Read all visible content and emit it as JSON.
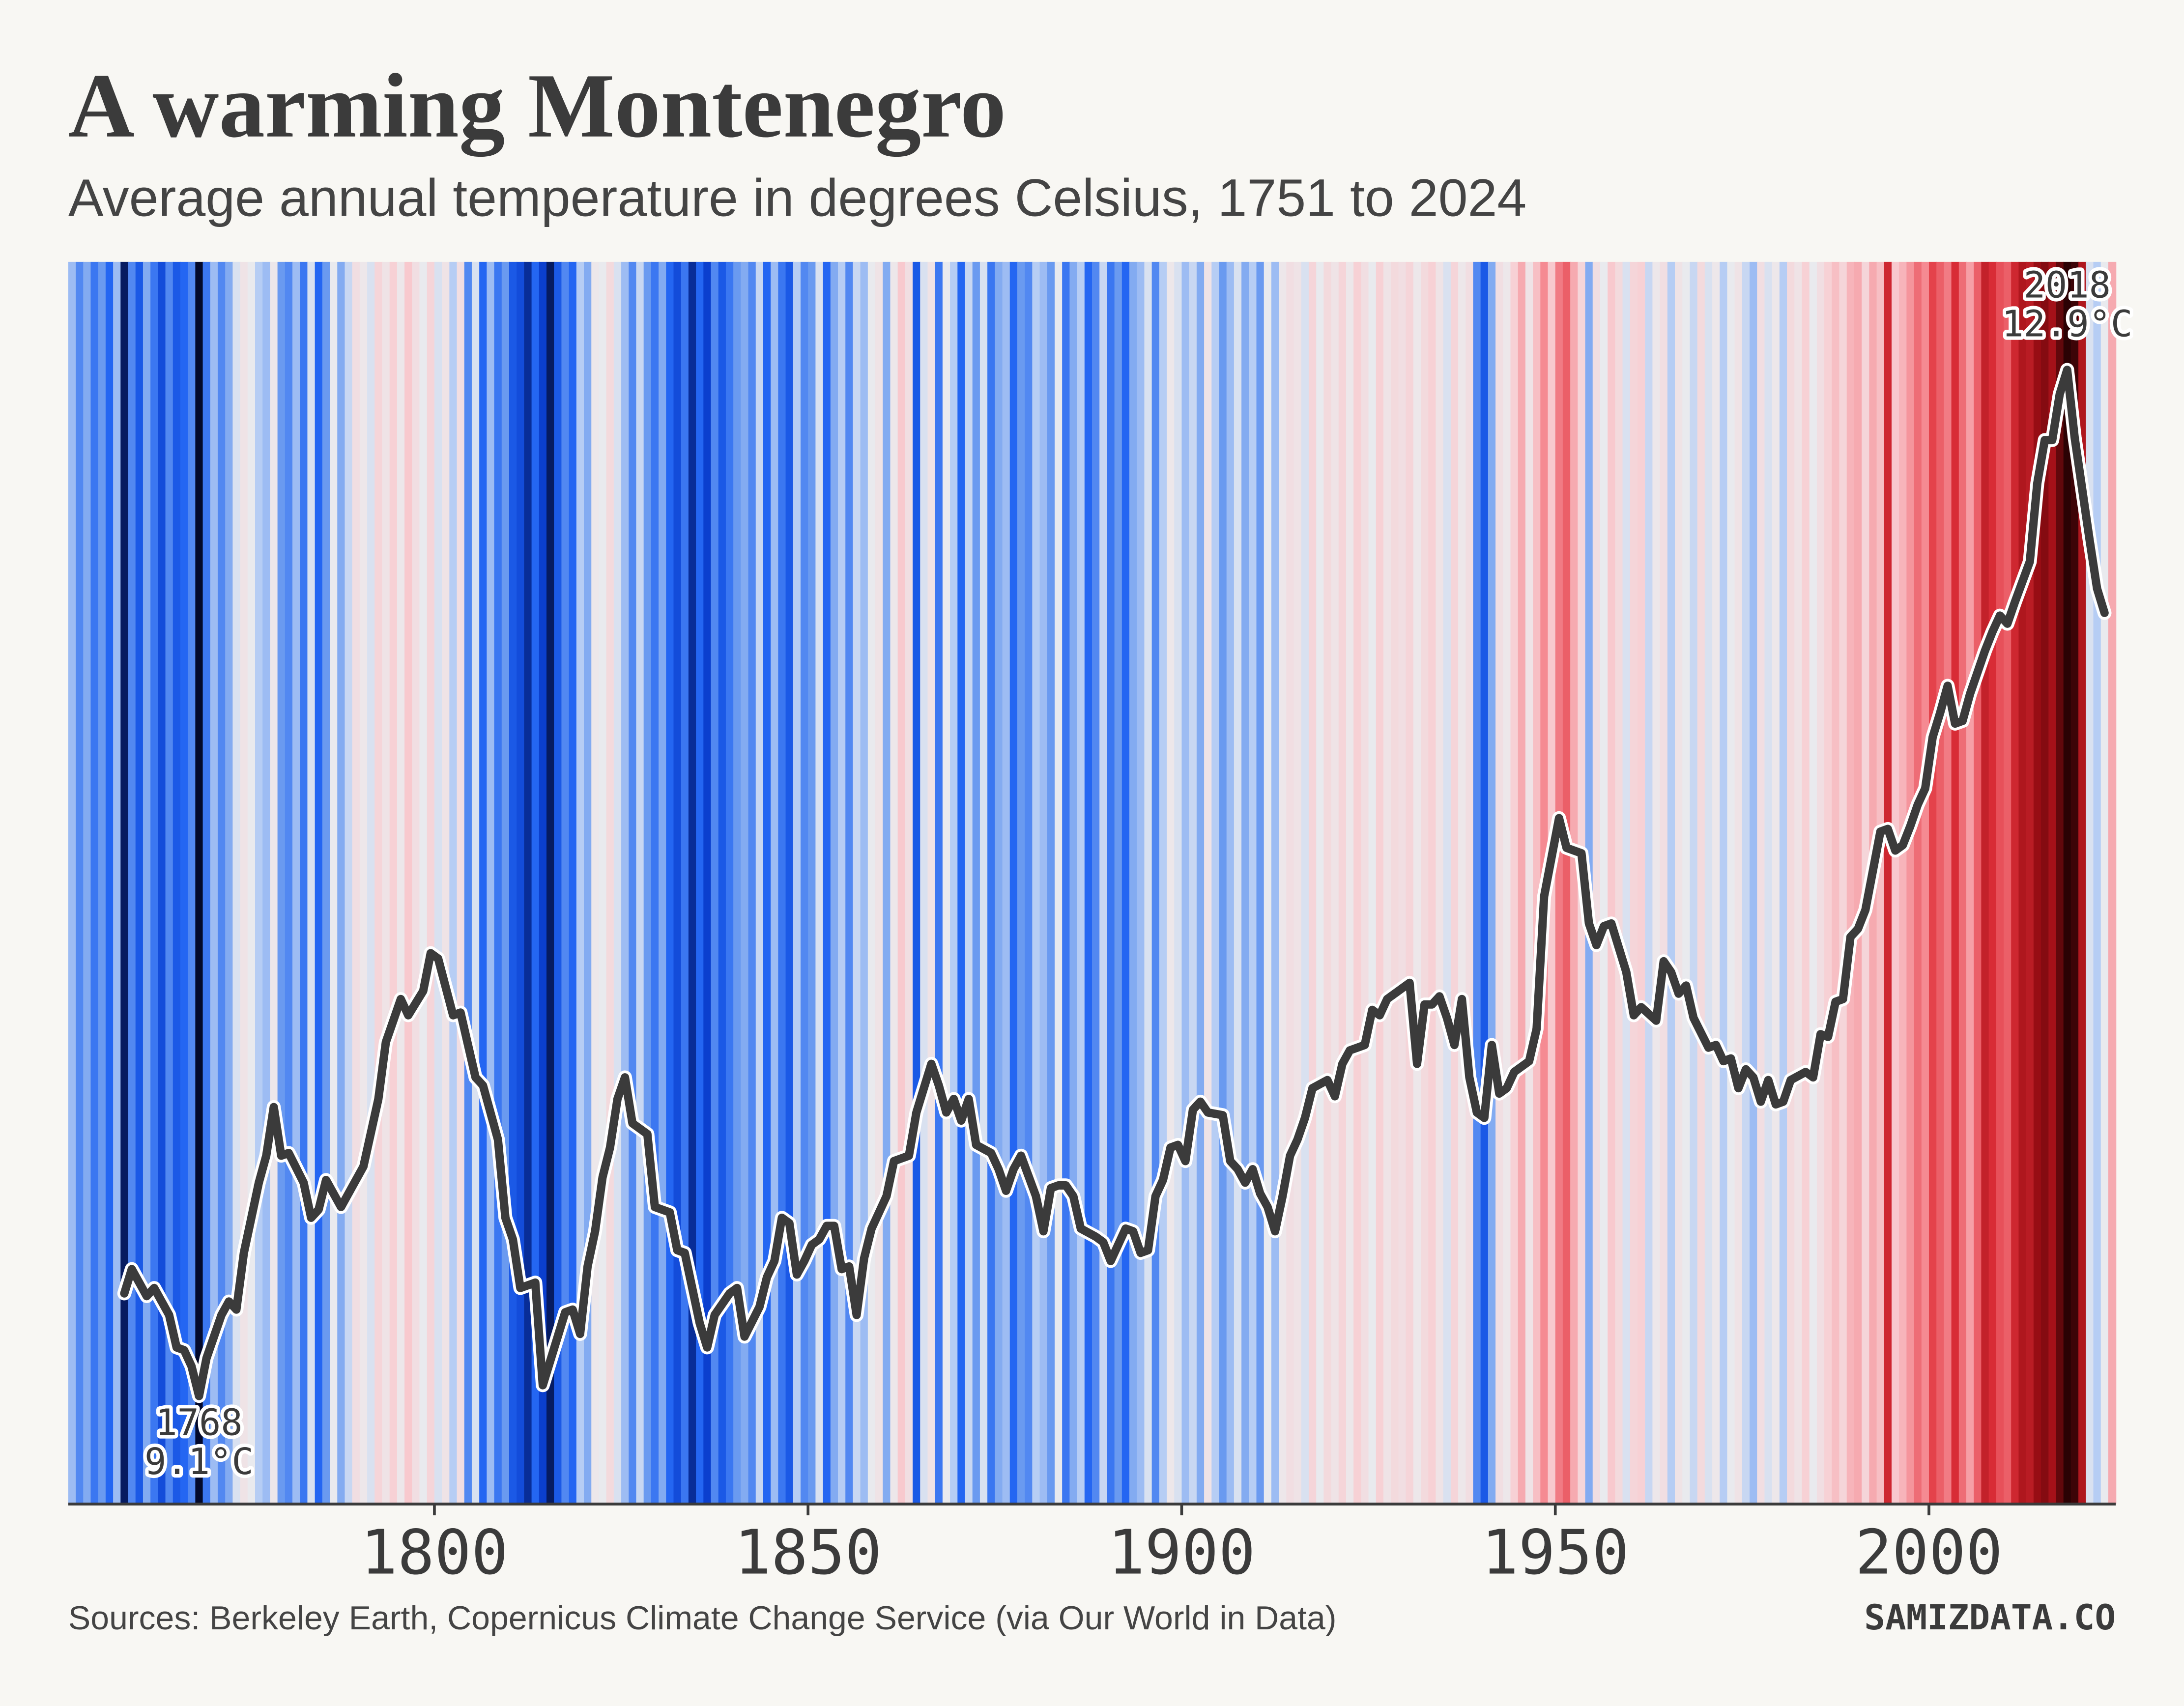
{
  "chart_data": {
    "type": "stripes",
    "title": "A warming Montenegro",
    "subtitle": "Average annual temperature in degrees Celsius, 1751 to 2024",
    "source": "Sources: Berkeley Earth, Copernicus Climate Change Service (via Our World in Data)",
    "brand": "SAMIZDATA.CO",
    "xlim": [
      1751,
      2025
    ],
    "xticks": [
      1800,
      1850,
      1900,
      1950,
      2000
    ],
    "ylim": [
      8.7,
      13.3
    ],
    "colormap": [
      "#03092b",
      "#0b3fcf",
      "#2466f2",
      "#6b9bf0",
      "#b8cef4",
      "#ebebee",
      "#f8cfd3",
      "#f58c94",
      "#e0303a",
      "#9e0e15",
      "#2b0204"
    ],
    "series": [
      {
        "x": [
          1751,
          1752,
          1753,
          1754,
          1755,
          1756,
          1757,
          1758,
          1759,
          1760,
          1761,
          1762,
          1763,
          1764,
          1765,
          1766,
          1767,
          1768,
          1769,
          1770,
          1771,
          1772,
          1773,
          1774,
          1775,
          1776,
          1777,
          1778,
          1779,
          1780,
          1781,
          1782,
          1783,
          1784,
          1785,
          1786,
          1787,
          1788,
          1789,
          1790,
          1791,
          1792,
          1793,
          1794,
          1795,
          1796,
          1797,
          1798,
          1799,
          1800,
          1801,
          1802,
          1803,
          1804,
          1805,
          1806,
          1807,
          1808,
          1809,
          1810,
          1811,
          1812,
          1813,
          1814,
          1815,
          1816,
          1817,
          1818,
          1819,
          1820,
          1821,
          1822,
          1823,
          1824,
          1825,
          1826,
          1827,
          1828,
          1829,
          1830,
          1831,
          1832,
          1833,
          1834,
          1835,
          1836,
          1837,
          1838,
          1839,
          1840,
          1841,
          1842,
          1843,
          1844,
          1845,
          1846,
          1847,
          1848,
          1849,
          1850,
          1851,
          1852,
          1853,
          1854,
          1855,
          1856,
          1857,
          1858,
          1859,
          1860,
          1861,
          1862,
          1863,
          1864,
          1865,
          1866,
          1867,
          1868,
          1869,
          1870,
          1871,
          1872,
          1873,
          1874,
          1875,
          1876,
          1877,
          1878,
          1879,
          1880,
          1881,
          1882,
          1883,
          1884,
          1885,
          1886,
          1887,
          1888,
          1889,
          1890,
          1891,
          1892,
          1893,
          1894,
          1895,
          1896,
          1897,
          1898,
          1899,
          1900,
          1901,
          1902,
          1903,
          1904,
          1905,
          1906,
          1907,
          1908,
          1909,
          1910,
          1911,
          1912,
          1913,
          1914,
          1915,
          1916,
          1917,
          1918,
          1919,
          1920,
          1921,
          1922,
          1923,
          1924,
          1925,
          1926,
          1927,
          1928,
          1929,
          1930,
          1931,
          1932,
          1933,
          1934,
          1935,
          1936,
          1937,
          1938,
          1939,
          1940,
          1941,
          1942,
          1943,
          1944,
          1945,
          1946,
          1947,
          1948,
          1949,
          1950,
          1951,
          1952,
          1953,
          1954,
          1955,
          1956,
          1957,
          1958,
          1959,
          1960,
          1961,
          1962,
          1963,
          1964,
          1965,
          1966,
          1967,
          1968,
          1969,
          1970,
          1971,
          1972,
          1973,
          1974,
          1975,
          1976,
          1977,
          1978,
          1979,
          1980,
          1981,
          1982,
          1983,
          1984,
          1985,
          1986,
          1987,
          1988,
          1989,
          1990,
          1991,
          1992,
          1993,
          1994,
          1995,
          1996,
          1997,
          1998,
          1999,
          2000,
          2001,
          2002,
          2003,
          2004,
          2005,
          2006,
          2007,
          2008,
          2009,
          2010,
          2011,
          2012,
          2013,
          2014,
          2015,
          2016,
          2017,
          2018,
          2019,
          2020,
          2021,
          2022,
          2023,
          2024
        ],
        "values": [
          9.9,
          9.6,
          9.8,
          9.5,
          9.7,
          9.4,
          9.9,
          8.9,
          9.6,
          9.3,
          9.8,
          9.5,
          9.2,
          9.6,
          9.3,
          9.4,
          9.6,
          8.8,
          9.5,
          9.9,
          9.6,
          9.8,
          10.2,
          10.5,
          10.3,
          10.0,
          9.9,
          10.4,
          9.7,
          9.6,
          9.9,
          9.5,
          10.2,
          9.4,
          9.7,
          10.3,
          9.8,
          10.1,
          10.6,
          10.4,
          10.2,
          10.8,
          10.5,
          10.9,
          10.4,
          11.0,
          10.6,
          10.3,
          10.8,
          10.2,
          10.5,
          10.0,
          10.6,
          9.6,
          10.2,
          9.4,
          9.9,
          9.5,
          9.7,
          9.3,
          9.2,
          9.0,
          9.4,
          9.1,
          8.9,
          9.3,
          9.6,
          9.4,
          10.0,
          9.8,
          10.4,
          10.3,
          10.7,
          10.2,
          9.9,
          9.6,
          10.1,
          9.7,
          9.5,
          9.8,
          9.4,
          9.2,
          9.5,
          9.0,
          9.4,
          9.1,
          9.6,
          9.3,
          9.5,
          9.7,
          9.8,
          9.6,
          10.1,
          9.4,
          9.9,
          9.5,
          9.3,
          10.0,
          9.6,
          9.7,
          10.2,
          9.4,
          9.8,
          10.0,
          9.6,
          10.1,
          9.9,
          10.3,
          10.5,
          9.8,
          10.4,
          11.0,
          10.6,
          9.3,
          10.2,
          10.5,
          9.5,
          10.3,
          10.0,
          9.4,
          10.1,
          9.7,
          10.2,
          9.5,
          9.8,
          9.9,
          9.4,
          9.7,
          9.6,
          10.0,
          9.9,
          9.7,
          10.3,
          9.5,
          9.8,
          10.0,
          9.4,
          9.6,
          10.1,
          9.5,
          9.7,
          9.4,
          9.8,
          9.9,
          10.2,
          9.6,
          10.0,
          10.4,
          10.2,
          9.9,
          10.1,
          9.8,
          10.5,
          10.0,
          9.7,
          9.9,
          10.2,
          9.8,
          10.0,
          9.7,
          10.3,
          9.9,
          10.4,
          10.6,
          10.5,
          10.2,
          10.8,
          10.3,
          10.7,
          10.5,
          10.8,
          10.4,
          10.9,
          10.6,
          10.3,
          10.9,
          10.5,
          10.7,
          10.6,
          10.8,
          10.4,
          10.7,
          10.9,
          10.5,
          10.2,
          10.8,
          10.4,
          10.6,
          9.6,
          9.3,
          9.8,
          10.6,
          10.4,
          10.9,
          11.3,
          10.5,
          11.1,
          11.6,
          11.0,
          11.7,
          11.9,
          11.3,
          10.8,
          9.8,
          10.6,
          10.3,
          11.0,
          10.7,
          10.2,
          10.8,
          10.9,
          10.1,
          10.4,
          10.6,
          10.0,
          10.5,
          10.3,
          10.1,
          10.7,
          10.2,
          10.4,
          10.0,
          10.3,
          10.5,
          10.1,
          9.9,
          10.6,
          10.2,
          10.4,
          10.0,
          10.7,
          10.5,
          10.9,
          10.3,
          10.6,
          10.9,
          11.1,
          10.8,
          11.2,
          11.3,
          10.8,
          11.3,
          11.1,
          12.4,
          11.0,
          11.2,
          11.5,
          11.8,
          11.6,
          12.1,
          11.9,
          11.7,
          12.3,
          11.8,
          11.4,
          11.9,
          12.5,
          12.3,
          12.0,
          11.9,
          12.4,
          12.7,
          12.6,
          12.9,
          13.0,
          12.8,
          13.2,
          13.5,
          13.4,
          12.7,
          10.2,
          10.0,
          10.3,
          11.3
        ]
      },
      {
        "color": "#3b3b3b",
        "x": [
          1758,
          1759,
          1761,
          1762,
          1764,
          1765,
          1766,
          1767,
          1768,
          1769,
          1771,
          1772,
          1773,
          1774,
          1776,
          1777,
          1778,
          1779,
          1780,
          1782,
          1783,
          1784,
          1785,
          1786,
          1787,
          1788,
          1790,
          1792,
          1793,
          1795,
          1796,
          1798,
          1799,
          1800,
          1802,
          1803,
          1805,
          1806,
          1807,
          1808,
          1809,
          1810,
          1811,
          1813,
          1814,
          1816,
          1817,
          1818,
          1819,
          1820,
          1821,
          1822,
          1823,
          1824,
          1825,
          1826,
          1828,
          1829,
          1831,
          1832,
          1833,
          1835,
          1836,
          1837,
          1839,
          1840,
          1841,
          1843,
          1844,
          1845,
          1846,
          1847,
          1848,
          1849,
          1850,
          1851,
          1852,
          1853,
          1854,
          1855,
          1856,
          1857,
          1858,
          1860,
          1861,
          1863,
          1864,
          1866,
          1867,
          1868,
          1869,
          1870,
          1871,
          1872,
          1874,
          1875,
          1876,
          1877,
          1878,
          1880,
          1881,
          1882,
          1883,
          1884,
          1885,
          1886,
          1888,
          1889,
          1890,
          1892,
          1893,
          1894,
          1895,
          1896,
          1897,
          1898,
          1899,
          1900,
          1901,
          1902,
          1903,
          1905,
          1906,
          1907,
          1908,
          1909,
          1910,
          1911,
          1912,
          1913,
          1914,
          1915,
          1916,
          1917,
          1919,
          1920,
          1921,
          1922,
          1924,
          1925,
          1926,
          1927,
          1929,
          1930,
          1931,
          1932,
          1933,
          1934,
          1935,
          1936,
          1937,
          1938,
          1939,
          1940,
          1941,
          1942,
          1943,
          1944,
          1946,
          1947,
          1948,
          1950,
          1951,
          1953,
          1954,
          1955,
          1956,
          1957,
          1958,
          1959,
          1960,
          1961,
          1963,
          1964,
          1965,
          1966,
          1967,
          1968,
          1970,
          1971,
          1972,
          1973,
          1974,
          1975,
          1976,
          1977,
          1978,
          1979,
          1980,
          1981,
          1983,
          1984,
          1985,
          1986,
          1987,
          1988,
          1989,
          1990,
          1991,
          1993,
          1994,
          1995,
          1996,
          1997,
          1998,
          1999,
          2000,
          2001,
          2002,
          2003,
          2004,
          2005,
          2007,
          2008,
          2009,
          2010,
          2011,
          2013,
          2014,
          2015,
          2016,
          2017,
          2018,
          2019,
          2021,
          2022,
          2023
        ],
        "values": [
          9.48,
          9.57,
          9.47,
          9.5,
          9.4,
          9.28,
          9.27,
          9.21,
          9.1,
          9.24,
          9.4,
          9.45,
          9.42,
          9.63,
          9.89,
          9.99,
          10.17,
          9.99,
          10.0,
          9.89,
          9.76,
          9.79,
          9.9,
          9.85,
          9.8,
          9.85,
          9.95,
          10.2,
          10.41,
          10.57,
          10.51,
          10.6,
          10.74,
          10.72,
          10.51,
          10.52,
          10.28,
          10.25,
          10.15,
          10.05,
          9.76,
          9.68,
          9.5,
          9.52,
          9.14,
          9.32,
          9.41,
          9.42,
          9.33,
          9.58,
          9.71,
          9.91,
          10.02,
          10.2,
          10.28,
          10.11,
          10.07,
          9.8,
          9.78,
          9.64,
          9.63,
          9.37,
          9.28,
          9.4,
          9.48,
          9.5,
          9.32,
          9.43,
          9.54,
          9.6,
          9.76,
          9.74,
          9.55,
          9.6,
          9.66,
          9.68,
          9.73,
          9.73,
          9.57,
          9.58,
          9.4,
          9.61,
          9.72,
          9.84,
          9.97,
          9.99,
          10.15,
          10.33,
          10.25,
          10.15,
          10.2,
          10.12,
          10.2,
          10.03,
          10.0,
          9.94,
          9.86,
          9.94,
          9.99,
          9.84,
          9.71,
          9.87,
          9.88,
          9.88,
          9.84,
          9.72,
          9.69,
          9.67,
          9.6,
          9.72,
          9.71,
          9.63,
          9.64,
          9.84,
          9.9,
          10.02,
          10.03,
          9.97,
          10.16,
          10.19,
          10.15,
          10.14,
          9.97,
          9.94,
          9.89,
          9.94,
          9.85,
          9.8,
          9.71,
          9.84,
          9.99,
          10.05,
          10.13,
          10.24,
          10.27,
          10.21,
          10.33,
          10.38,
          10.4,
          10.53,
          10.51,
          10.57,
          10.61,
          10.63,
          10.33,
          10.55,
          10.55,
          10.58,
          10.5,
          10.4,
          10.57,
          10.28,
          10.15,
          10.13,
          10.4,
          10.22,
          10.24,
          10.3,
          10.34,
          10.46,
          10.95,
          11.24,
          11.13,
          11.11,
          10.85,
          10.77,
          10.84,
          10.85,
          10.76,
          10.67,
          10.51,
          10.54,
          10.49,
          10.71,
          10.67,
          10.59,
          10.62,
          10.5,
          10.39,
          10.4,
          10.34,
          10.35,
          10.24,
          10.31,
          10.28,
          10.19,
          10.27,
          10.18,
          10.19,
          10.27,
          10.3,
          10.28,
          10.44,
          10.43,
          10.56,
          10.57,
          10.8,
          10.83,
          10.9,
          11.19,
          11.2,
          11.12,
          11.14,
          11.21,
          11.29,
          11.35,
          11.54,
          11.63,
          11.73,
          11.59,
          11.6,
          11.7,
          11.86,
          11.93,
          11.99,
          11.96,
          12.04,
          12.19,
          12.48,
          12.64,
          12.64,
          12.81,
          12.9,
          12.65,
          12.27,
          12.09,
          12.0
        ]
      }
    ],
    "annotations": [
      {
        "x": 1768,
        "y": 9.1,
        "label": "9.1°C",
        "position": "below"
      },
      {
        "x": 2018,
        "y": 12.9,
        "label": "12.9°C",
        "position": "above"
      }
    ]
  }
}
